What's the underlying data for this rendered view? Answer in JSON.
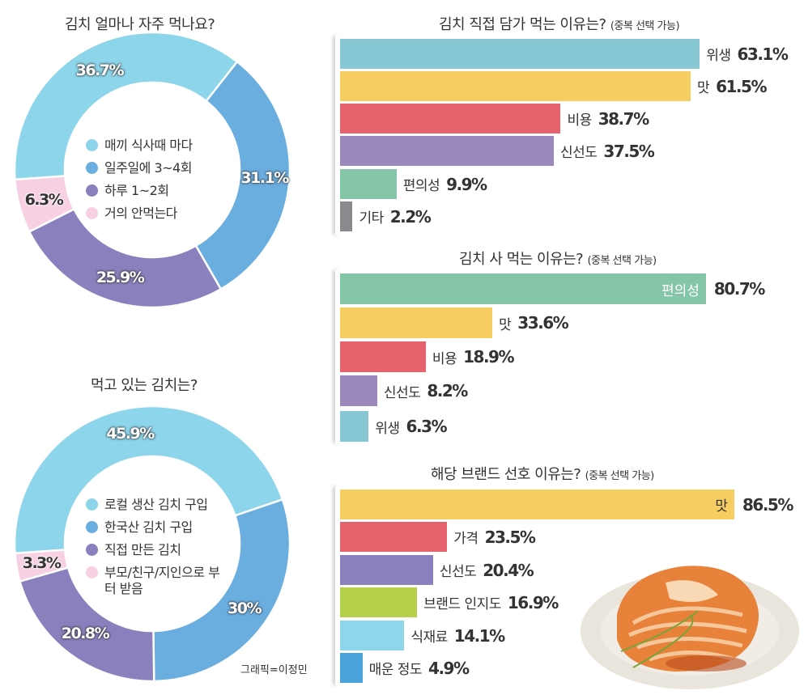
{
  "credit": "그래픽=이정민",
  "chart_data": [
    {
      "type": "pie",
      "id": "freq",
      "title": "김치 얼마나 자주 먹나요?",
      "labels": [
        "매끼 식사때 마다",
        "일주일에 3~4회",
        "하루 1~2회",
        "거의 안먹는다"
      ],
      "values": [
        36.7,
        31.1,
        25.9,
        6.3
      ],
      "value_labels": [
        "36.7%",
        "31.1%",
        "25.9%",
        "6.3%"
      ],
      "colors": [
        "#8dd5ea",
        "#6aaee0",
        "#8a80bd",
        "#f7d1e3"
      ],
      "legend": "center"
    },
    {
      "type": "pie",
      "id": "which",
      "title": "먹고 있는 김치는?",
      "labels": [
        "로컬 생산 김치 구입",
        "한국산 김치 구입",
        "직접 만든 김치",
        "부모/친구/지인으로 부터 받음"
      ],
      "values": [
        45.9,
        30,
        20.8,
        3.3
      ],
      "value_labels": [
        "45.9%",
        "30%",
        "20.8%",
        "3.3%"
      ],
      "colors": [
        "#8dd5ea",
        "#6aaee0",
        "#8a80bd",
        "#f7d1e3"
      ],
      "legend": "center"
    },
    {
      "type": "bar",
      "id": "diy",
      "title": "김치 직접 담가 먹는 이유는?",
      "subtitle": "(중복 선택 가능)",
      "categories": [
        "위생",
        "맛",
        "비용",
        "신선도",
        "편의성",
        "기타"
      ],
      "values": [
        63.1,
        61.5,
        38.7,
        37.5,
        9.9,
        2.2
      ],
      "value_labels": [
        "63.1%",
        "61.5%",
        "38.7%",
        "37.5%",
        "9.9%",
        "2.2%"
      ],
      "colors": [
        "#88c8d4",
        "#f5cd60",
        "#e6636e",
        "#9b89bc",
        "#85c6a8",
        "#8a8a8e"
      ],
      "inside_label": [
        false,
        false,
        false,
        false,
        false,
        false
      ],
      "xlim": [
        0,
        100
      ]
    },
    {
      "type": "bar",
      "id": "buy",
      "title": "김치 사 먹는 이유는?",
      "subtitle": "(중복 선택 가능)",
      "categories": [
        "편의성",
        "맛",
        "비용",
        "신선도",
        "위생"
      ],
      "values": [
        80.7,
        33.6,
        18.9,
        8.2,
        6.3
      ],
      "value_labels": [
        "80.7%",
        "33.6%",
        "18.9%",
        "8.2%",
        "6.3%"
      ],
      "colors": [
        "#85c6a8",
        "#f5cd60",
        "#e6636e",
        "#9b89bc",
        "#88c8d4"
      ],
      "inside_label": [
        true,
        false,
        false,
        false,
        false
      ],
      "xlim": [
        0,
        100
      ]
    },
    {
      "type": "bar",
      "id": "brand",
      "title": "해당 브랜드 선호 이유는?",
      "subtitle": "(중복 선택 가능)",
      "categories": [
        "맛",
        "가격",
        "신선도",
        "브랜드 인지도",
        "식재료",
        "매운 정도"
      ],
      "values": [
        86.5,
        23.5,
        20.4,
        16.9,
        14.1,
        4.9
      ],
      "value_labels": [
        "86.5%",
        "23.5%",
        "20.4%",
        "16.9%",
        "14.1%",
        "4.9%"
      ],
      "colors": [
        "#f5cd60",
        "#e6636e",
        "#8a80be",
        "#b5d04a",
        "#8ed6ea",
        "#4aa3db"
      ],
      "inside_label": [
        true,
        false,
        false,
        false,
        false,
        false
      ],
      "xlim": [
        0,
        100
      ]
    }
  ]
}
